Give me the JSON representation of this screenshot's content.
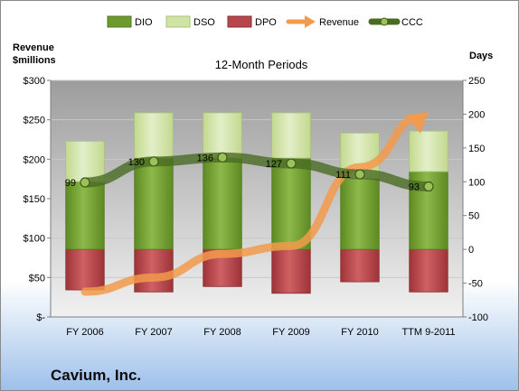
{
  "chart_data": {
    "type": "bar",
    "title": "12-Month Periods",
    "categories": [
      "FY 2006",
      "FY 2007",
      "FY 2008",
      "FY 2009",
      "FY 2010",
      "TTM 9-2011"
    ],
    "left_axis": {
      "label_line1": "Revenue",
      "label_line2": "$millions",
      "range": [
        0,
        300
      ],
      "ticks": [
        "$-",
        "$50",
        "$100",
        "$150",
        "$200",
        "$250",
        "$300"
      ],
      "tick_values": [
        0,
        50,
        100,
        150,
        200,
        250,
        300
      ]
    },
    "right_axis": {
      "label": "Days",
      "range": [
        -100,
        250
      ],
      "ticks": [
        "-100",
        "-50",
        "0",
        "50",
        "100",
        "150",
        "200",
        "250"
      ],
      "tick_values": [
        -100,
        -50,
        0,
        50,
        100,
        150,
        200,
        250
      ]
    },
    "series": [
      {
        "name": "DIO",
        "axis": "right",
        "kind": "stacked-bar",
        "color": "#6f9a2e",
        "values": [
          100,
          135,
          135,
          135,
          105,
          115
        ]
      },
      {
        "name": "DSO",
        "axis": "right",
        "kind": "stacked-bar",
        "color": "#cfe3a6",
        "values": [
          60,
          67,
          67,
          67,
          67,
          60
        ]
      },
      {
        "name": "DPO",
        "axis": "right",
        "kind": "bar-negative",
        "color": "#b8474b",
        "values": [
          -60,
          -63,
          -55,
          -65,
          -48,
          -63
        ]
      },
      {
        "name": "Revenue",
        "axis": "left",
        "kind": "arrow-line",
        "color": "#f39a4c",
        "values": [
          32,
          50,
          80,
          90,
          190,
          260
        ]
      },
      {
        "name": "CCC",
        "axis": "right",
        "kind": "line",
        "color": "#4a6b23",
        "values": [
          99,
          130,
          136,
          127,
          111,
          93
        ],
        "labels": [
          "99",
          "130",
          "136",
          "127",
          "111",
          "93"
        ]
      }
    ],
    "legend_position": "top",
    "grid": true
  },
  "footer": {
    "company": "Cavium, Inc."
  }
}
